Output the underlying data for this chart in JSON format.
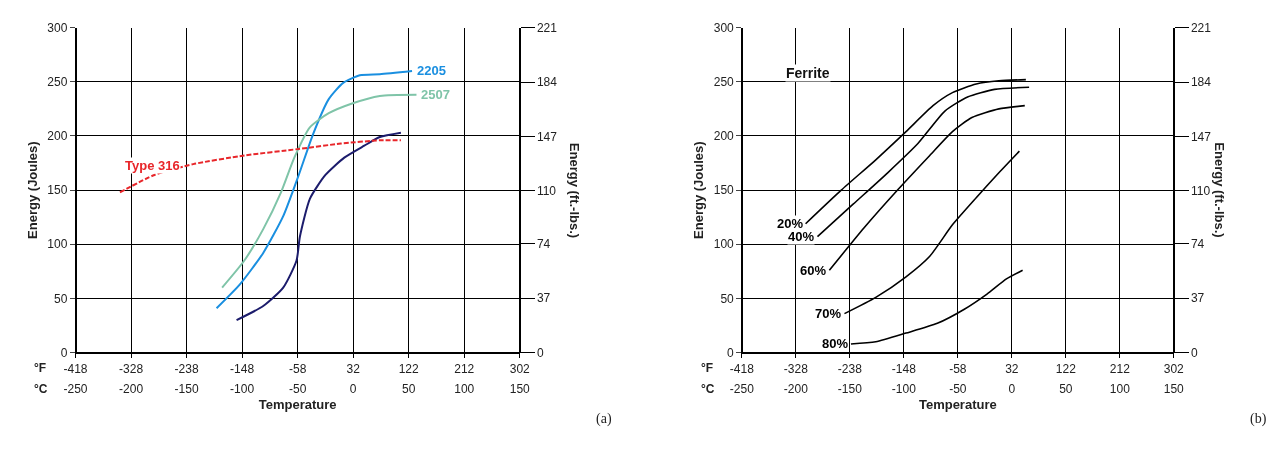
{
  "chart_data": [
    {
      "type": "line",
      "xlabel": "Temperature",
      "ylabel": "Energy (Joules)",
      "y2label": "Energy (ft.-lbs.)",
      "xlim": [
        -250,
        150
      ],
      "xticks": [
        -250,
        -200,
        -150,
        -100,
        -50,
        0,
        50,
        100,
        150
      ],
      "x2lim": [
        -418,
        302
      ],
      "x2ticks": [
        -418,
        -328,
        -238,
        -148,
        -58,
        32,
        122,
        212,
        302
      ],
      "ylim": [
        0,
        300
      ],
      "yticks": [
        0,
        50,
        100,
        150,
        200,
        250,
        300
      ],
      "y2lim": [
        0,
        221
      ],
      "y2ticks": [
        0,
        37,
        74,
        110,
        147,
        184,
        221
      ],
      "grid": true,
      "annotations": [
        "°F",
        "°C",
        "(a)"
      ],
      "series": [
        {
          "name": "2205",
          "color": "#1a8fe0",
          "line_style": "solid",
          "x": [
            -123,
            -102,
            -81,
            -63,
            -49,
            -36,
            -22,
            -9,
            6,
            24,
            53
          ],
          "values": [
            41,
            63,
            92,
            126,
            164,
            202,
            234,
            249,
            256,
            257,
            260
          ]
        },
        {
          "name": "2507",
          "color": "#7fc4a8",
          "line_style": "solid",
          "x": [
            -118,
            -98,
            -81,
            -65,
            -53,
            -39,
            -22,
            -1,
            24,
            57
          ],
          "values": [
            60,
            85,
            114,
            148,
            180,
            208,
            221,
            230,
            237,
            238
          ]
        },
        {
          "color": "#1c1c6c",
          "line_style": "solid",
          "x": [
            -105,
            -81,
            -63,
            -51,
            -48,
            -39,
            -25,
            -8,
            10,
            24,
            43
          ],
          "values": [
            30,
            43,
            60,
            85,
            107,
            142,
            164,
            180,
            191,
            199,
            203
          ]
        },
        {
          "name": "Type 316",
          "color": "#e8262a",
          "line_style": "dashed",
          "x": [
            -210,
            -179,
            -144,
            -98,
            -49,
            -11,
            24,
            43
          ],
          "values": [
            148,
            164,
            174,
            182,
            188,
            193,
            196,
            196
          ]
        }
      ]
    },
    {
      "type": "line",
      "xlabel": "Temperature",
      "ylabel": "Energy (Joules)",
      "y2label": "Energy (ft.-lbs.)",
      "xlim": [
        -250,
        150
      ],
      "xticks": [
        -250,
        -200,
        -150,
        -100,
        -50,
        0,
        50,
        100,
        150
      ],
      "x2lim": [
        -418,
        302
      ],
      "x2ticks": [
        -418,
        -328,
        -238,
        -148,
        -58,
        32,
        122,
        212,
        302
      ],
      "ylim": [
        0,
        300
      ],
      "yticks": [
        0,
        50,
        100,
        150,
        200,
        250,
        300
      ],
      "y2lim": [
        0,
        221
      ],
      "y2ticks": [
        0,
        37,
        74,
        110,
        147,
        184,
        221
      ],
      "grid": true,
      "annotations": [
        "°F",
        "°C",
        "Ferrite",
        "(b)"
      ],
      "series": [
        {
          "name": "20%",
          "color": "#000000",
          "line_style": "solid",
          "x": [
            -191,
            -158,
            -126,
            -98,
            -73,
            -55,
            -33,
            -12,
            13
          ],
          "values": [
            119,
            150,
            178,
            204,
            228,
            240,
            248,
            251,
            252
          ]
        },
        {
          "name": "40%",
          "color": "#000000",
          "line_style": "solid",
          "x": [
            -180,
            -147,
            -115,
            -87,
            -62,
            -41,
            -16,
            16
          ],
          "values": [
            107,
            137,
            166,
            193,
            223,
            236,
            243,
            245
          ]
        },
        {
          "name": "60%",
          "color": "#000000",
          "line_style": "solid",
          "x": [
            -169,
            -137,
            -105,
            -76,
            -55,
            -37,
            -12,
            12
          ],
          "values": [
            76,
            115,
            151,
            182,
            204,
            217,
            225,
            228
          ]
        },
        {
          "name": "70%",
          "color": "#000000",
          "line_style": "solid",
          "x": [
            -155,
            -126,
            -98,
            -76,
            -55,
            -33,
            -12,
            7
          ],
          "values": [
            36,
            51,
            70,
            89,
            118,
            143,
            166,
            186
          ]
        },
        {
          "name": "80%",
          "color": "#000000",
          "line_style": "solid",
          "x": [
            -149,
            -126,
            -98,
            -69,
            -44,
            -23,
            -5,
            10
          ],
          "values": [
            8,
            10,
            18,
            27,
            40,
            54,
            68,
            76
          ]
        }
      ]
    }
  ]
}
